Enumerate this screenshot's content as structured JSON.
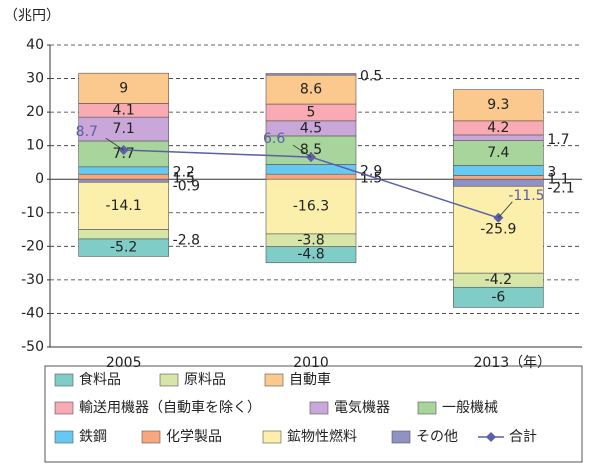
{
  "chart_data": {
    "type": "bar",
    "stacked": true,
    "y_label": "（兆円）",
    "x_unit": "（年）",
    "categories": [
      "2005",
      "2010",
      "2013"
    ],
    "ylim": [
      -50,
      40
    ],
    "yticks": [
      -50,
      -40,
      -30,
      -20,
      -10,
      0,
      10,
      20,
      30,
      40
    ],
    "grid": true,
    "series": [
      {
        "name": "食料品",
        "color": "#7fcdc6",
        "values": [
          -5.2,
          -4.8,
          -6.0
        ]
      },
      {
        "name": "原料品",
        "color": "#d7e6a8",
        "values": [
          -2.8,
          -3.8,
          -4.2
        ]
      },
      {
        "name": "自動車",
        "color": "#fbc98e",
        "values": [
          9.0,
          8.6,
          9.3
        ]
      },
      {
        "name": "輸送用機器（自動車を除く）",
        "color": "#f9aab2",
        "values": [
          4.1,
          5.0,
          4.2
        ]
      },
      {
        "name": "電気機器",
        "color": "#c9a7d8",
        "values": [
          7.1,
          4.5,
          1.7
        ]
      },
      {
        "name": "一般機械",
        "color": "#a8d59c",
        "values": [
          7.7,
          8.5,
          7.4
        ]
      },
      {
        "name": "鉄鋼",
        "color": "#66c9f1",
        "values": [
          2.2,
          2.9,
          3.0
        ]
      },
      {
        "name": "化学製品",
        "color": "#f8a67c",
        "values": [
          1.5,
          1.5,
          1.1
        ]
      },
      {
        "name": "鉱物性燃料",
        "color": "#fcefac",
        "values": [
          -14.1,
          -16.3,
          -25.9
        ]
      },
      {
        "name": "その他",
        "color": "#8f92c2",
        "values": [
          -0.9,
          0.5,
          -2.1
        ]
      },
      {
        "name": "合計",
        "type": "line",
        "color": "#5b5ea8",
        "values": [
          8.7,
          6.6,
          -11.5
        ]
      }
    ]
  }
}
